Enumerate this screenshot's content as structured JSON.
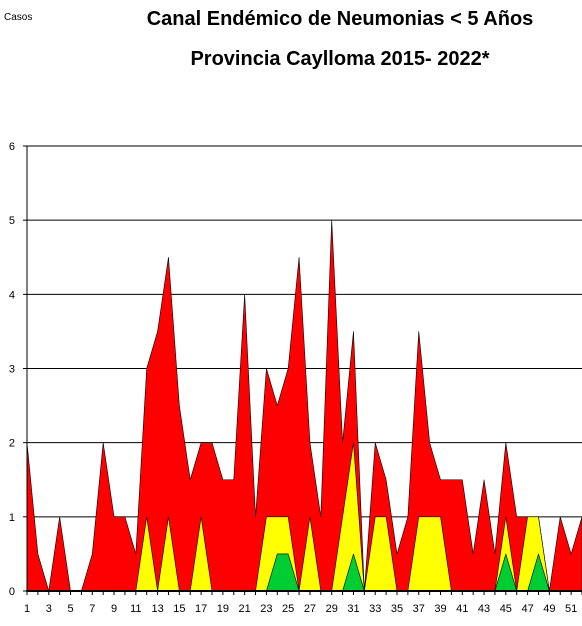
{
  "header": {
    "ylabel": "Casos",
    "title_line1": "Canal Endémico de Neumonias < 5 Años",
    "title_line2": "Provincia Caylloma 2015- 2022*"
  },
  "chart_data": {
    "type": "area",
    "title": "Canal Endémico de Neumonias < 5 Años Provincia Caylloma 2015- 2022*",
    "ylabel": "Casos",
    "xlabel": "",
    "ylim": [
      0,
      6
    ],
    "yticks": [
      0,
      1,
      2,
      3,
      4,
      5,
      6
    ],
    "xlim": [
      1,
      52
    ],
    "xtick_labels": [
      1,
      3,
      5,
      7,
      9,
      11,
      13,
      15,
      17,
      19,
      21,
      23,
      25,
      27,
      29,
      31,
      33,
      35,
      37,
      39,
      41,
      43,
      45,
      47,
      49,
      51
    ],
    "grid": true,
    "x": [
      1,
      2,
      3,
      4,
      5,
      6,
      7,
      8,
      9,
      10,
      11,
      12,
      13,
      14,
      15,
      16,
      17,
      18,
      19,
      20,
      21,
      22,
      23,
      24,
      25,
      26,
      27,
      28,
      29,
      30,
      31,
      32,
      33,
      34,
      35,
      36,
      37,
      38,
      39,
      40,
      41,
      42,
      43,
      44,
      45,
      46,
      47,
      48,
      49,
      50,
      51,
      52
    ],
    "series": [
      {
        "color": "#ff0000",
        "values": [
          2,
          0.5,
          0,
          1,
          0,
          0,
          0.5,
          2,
          1,
          1,
          0.5,
          3,
          3.5,
          4.5,
          2.5,
          1.5,
          2,
          2,
          1.5,
          1.5,
          4,
          1,
          3,
          2.5,
          3,
          4.5,
          2,
          1,
          5,
          2,
          3.5,
          0,
          2,
          1.5,
          0.5,
          1,
          3.5,
          2,
          1.5,
          1.5,
          1.5,
          0.5,
          1.5,
          0.5,
          2,
          1,
          1,
          1,
          0,
          1,
          0.5,
          1
        ]
      },
      {
        "color": "#ffff00",
        "values": [
          0,
          0,
          0,
          0,
          0,
          0,
          0,
          0,
          0,
          0,
          0,
          1,
          0,
          1,
          0,
          0,
          1,
          0,
          0,
          0,
          0,
          0,
          1,
          1,
          1,
          0,
          1,
          0,
          0,
          1,
          2,
          0,
          1,
          1,
          0,
          0,
          1,
          1,
          1,
          0,
          0,
          0,
          0,
          0,
          1,
          0,
          1,
          1,
          0,
          0,
          0,
          0
        ]
      },
      {
        "color": "#00cc33",
        "values": [
          0,
          0,
          0,
          0,
          0,
          0,
          0,
          0,
          0,
          0,
          0,
          0,
          0,
          0,
          0,
          0,
          0,
          0,
          0,
          0,
          0,
          0,
          0,
          0.5,
          0.5,
          0,
          0,
          0,
          0,
          0,
          0.5,
          0,
          0,
          0,
          0,
          0,
          0,
          0,
          0,
          0,
          0,
          0,
          0,
          0,
          0.5,
          0,
          0,
          0.5,
          0,
          0,
          0,
          0
        ]
      },
      {
        "color": "#000000",
        "values": [
          0,
          0,
          0,
          0,
          0,
          0,
          0,
          0,
          0,
          0,
          0,
          0,
          0,
          0,
          0,
          0,
          0,
          0,
          0,
          0,
          0,
          0,
          0,
          0,
          0,
          0,
          0,
          0,
          0,
          0,
          0,
          0,
          0,
          0,
          0,
          0,
          0,
          0,
          0,
          0,
          0,
          0,
          0,
          0,
          0,
          0,
          0,
          0,
          0,
          0,
          0,
          0
        ]
      }
    ]
  }
}
